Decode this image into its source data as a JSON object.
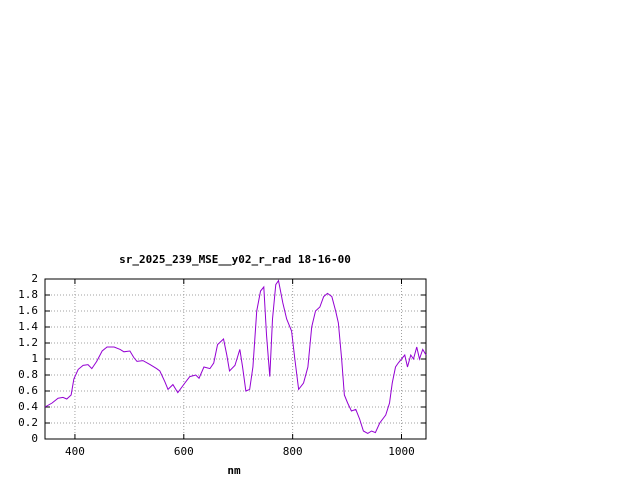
{
  "chart_data": {
    "type": "line",
    "title": "sr_2025_239_MSE__y02_r_rad 18-16-00",
    "x_label": "nm",
    "x": [
      345,
      358,
      369,
      378,
      385,
      393,
      398,
      406,
      415,
      424,
      431,
      440,
      450,
      459,
      472,
      483,
      490,
      501,
      508,
      514,
      525,
      538,
      550,
      556,
      565,
      571,
      580,
      589,
      602,
      611,
      622,
      628,
      637,
      648,
      655,
      662,
      673,
      679,
      684,
      694,
      703,
      708,
      714,
      721,
      727,
      734,
      741,
      747,
      752,
      758,
      763,
      769,
      774,
      782,
      789,
      798,
      804,
      811,
      820,
      828,
      835,
      842,
      850,
      857,
      864,
      872,
      879,
      884,
      890,
      895,
      901,
      908,
      916,
      923,
      930,
      938,
      945,
      952,
      960,
      971,
      978,
      983,
      989,
      994,
      1000,
      1006,
      1011,
      1017,
      1022,
      1028,
      1033,
      1039,
      1045
    ],
    "series": [
      {
        "color": "#9400d3",
        "values": [
          0.4,
          0.45,
          0.51,
          0.52,
          0.5,
          0.55,
          0.75,
          0.87,
          0.92,
          0.93,
          0.88,
          0.97,
          1.1,
          1.15,
          1.15,
          1.12,
          1.09,
          1.1,
          1.02,
          0.97,
          0.98,
          0.93,
          0.88,
          0.85,
          0.72,
          0.62,
          0.68,
          0.58,
          0.7,
          0.78,
          0.8,
          0.76,
          0.9,
          0.88,
          0.95,
          1.18,
          1.25,
          1.05,
          0.85,
          0.92,
          1.12,
          0.9,
          0.6,
          0.62,
          0.9,
          1.6,
          1.85,
          1.9,
          1.3,
          0.78,
          1.5,
          1.93,
          1.98,
          1.7,
          1.5,
          1.35,
          1.0,
          0.62,
          0.7,
          0.9,
          1.4,
          1.6,
          1.65,
          1.78,
          1.82,
          1.78,
          1.6,
          1.45,
          1.0,
          0.55,
          0.45,
          0.35,
          0.37,
          0.25,
          0.1,
          0.07,
          0.1,
          0.08,
          0.2,
          0.3,
          0.45,
          0.7,
          0.9,
          0.95,
          1.0,
          1.05,
          0.9,
          1.05,
          1.0,
          1.15,
          1.0,
          1.12,
          1.05
        ]
      }
    ],
    "xlim": [
      345,
      1045
    ],
    "ylim": [
      0,
      2
    ],
    "xticks": [
      400,
      600,
      800,
      1000
    ],
    "yticks": [
      0,
      0.2,
      0.4,
      0.6,
      0.8,
      1,
      1.2,
      1.4,
      1.6,
      1.8,
      2
    ],
    "grid": true
  }
}
